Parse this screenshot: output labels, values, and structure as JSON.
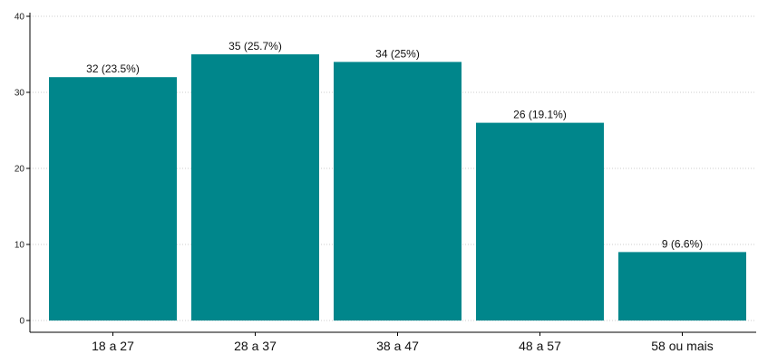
{
  "chart_data": {
    "type": "bar",
    "title": "",
    "xlabel": "",
    "ylabel": "",
    "categories": [
      "18 a 27",
      "28 a 37",
      "38 a 47",
      "48 a 57",
      "58 ou mais"
    ],
    "values": [
      32,
      35,
      34,
      26,
      9
    ],
    "data_labels": [
      "32 (23.5%)",
      "35 (25.7%)",
      "34 (25%)",
      "26 (19.1%)",
      "9 (6.6%)"
    ],
    "ylim": [
      0,
      40
    ],
    "yticks": [
      0,
      10,
      20,
      30,
      40
    ],
    "grid": true,
    "grid_axis": "y",
    "legend": "none",
    "bar_color": "#00868B",
    "grid_color": "#cccccc",
    "axis_color": "#000000"
  }
}
